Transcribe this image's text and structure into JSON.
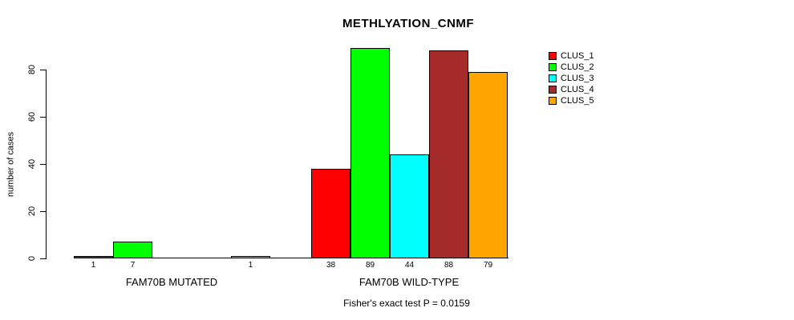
{
  "chart_data": {
    "type": "bar",
    "title": "METHLYATION_CNMF",
    "ylabel": "number of cases",
    "yticks": [
      0,
      20,
      40,
      60,
      80
    ],
    "ylim": [
      0,
      89
    ],
    "grid": false,
    "categories": [
      "FAM70B MUTATED",
      "FAM70B WILD-TYPE"
    ],
    "series": [
      {
        "name": "CLUS_1",
        "color": "#ff0000",
        "values": [
          1,
          38
        ]
      },
      {
        "name": "CLUS_2",
        "color": "#00ff00",
        "values": [
          7,
          89
        ]
      },
      {
        "name": "CLUS_3",
        "color": "#00ffff",
        "values": [
          0,
          44
        ]
      },
      {
        "name": "CLUS_4",
        "color": "#a52a2a",
        "values": [
          0,
          88
        ]
      },
      {
        "name": "CLUS_5",
        "color": "#ffa500",
        "values": [
          1,
          79
        ]
      }
    ],
    "bar_value_labels": {
      "show": true,
      "hide_zero": true
    },
    "legend": {
      "position": "right",
      "entries": [
        "CLUS_1",
        "CLUS_2",
        "CLUS_3",
        "CLUS_4",
        "CLUS_5"
      ]
    },
    "annotation": "Fisher's exact test P = 0.0159"
  }
}
